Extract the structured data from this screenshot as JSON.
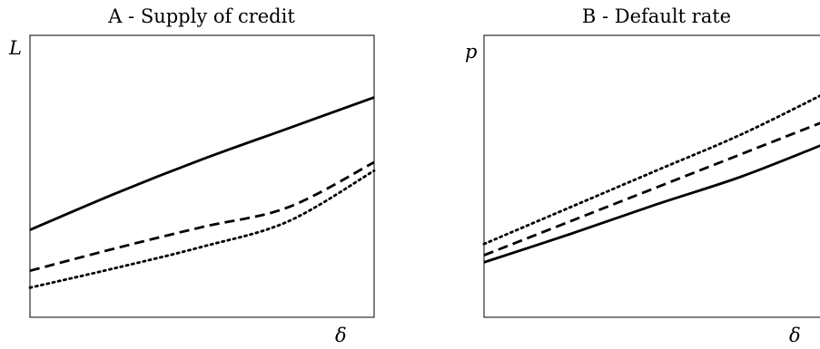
{
  "chart_data": [
    {
      "type": "line",
      "title": "A - Supply of credit",
      "xlabel": "δ",
      "ylabel": "L",
      "xlim": [
        0,
        1
      ],
      "ylim": [
        0,
        1
      ],
      "grid": false,
      "legend": "none",
      "series": [
        {
          "style": "solid",
          "x": [
            0,
            0.25,
            0.5,
            0.75,
            1.0
          ],
          "y": [
            0.31,
            0.44,
            0.56,
            0.67,
            0.78
          ]
        },
        {
          "style": "dashed",
          "x": [
            0,
            0.25,
            0.5,
            0.75,
            1.0
          ],
          "y": [
            0.165,
            0.245,
            0.32,
            0.39,
            0.55
          ]
        },
        {
          "style": "dotted",
          "x": [
            0,
            0.25,
            0.5,
            0.75,
            1.0
          ],
          "y": [
            0.105,
            0.175,
            0.25,
            0.34,
            0.52
          ]
        }
      ]
    },
    {
      "type": "line",
      "title": "B - Default rate",
      "xlabel": "δ",
      "ylabel": "p",
      "xlim": [
        0,
        1
      ],
      "ylim": [
        0,
        1
      ],
      "grid": false,
      "legend": "none",
      "series": [
        {
          "style": "solid",
          "x": [
            0,
            0.25,
            0.5,
            0.75,
            1.0
          ],
          "y": [
            0.195,
            0.295,
            0.4,
            0.5,
            0.62
          ]
        },
        {
          "style": "dashed",
          "x": [
            0,
            0.25,
            0.5,
            0.75,
            1.0
          ],
          "y": [
            0.22,
            0.34,
            0.46,
            0.58,
            0.7
          ]
        },
        {
          "style": "dotted",
          "x": [
            0,
            0.25,
            0.5,
            0.75,
            1.0
          ],
          "y": [
            0.26,
            0.39,
            0.52,
            0.65,
            0.8
          ]
        }
      ]
    }
  ]
}
